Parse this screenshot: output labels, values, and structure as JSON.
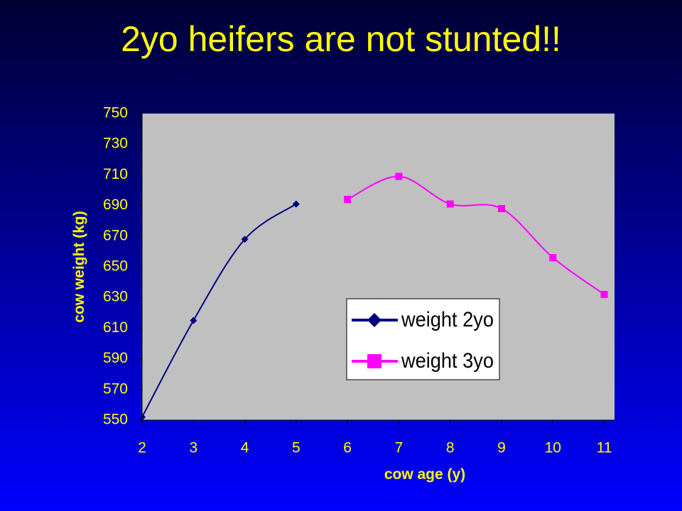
{
  "chart_data": {
    "type": "line",
    "title": "2yo heifers are not stunted!!",
    "xlabel": "cow age (y)",
    "ylabel": "cow weight (kg)",
    "xlim": [
      2,
      11.2
    ],
    "xticks": [
      2,
      3,
      4,
      5,
      6,
      7,
      8,
      9,
      10,
      11
    ],
    "ylim": [
      550,
      750
    ],
    "yticks": [
      550,
      570,
      590,
      610,
      630,
      650,
      670,
      690,
      710,
      730,
      750
    ],
    "smooth": true,
    "series": [
      {
        "name": "weight 2yo",
        "color": "#000080",
        "marker": "diamond",
        "x": [
          2,
          3,
          4,
          5
        ],
        "values": [
          552,
          615,
          668,
          691
        ]
      },
      {
        "name": "weight 3yo",
        "color": "#ff00ff",
        "marker": "square",
        "x": [
          6,
          7,
          8,
          9,
          10,
          11
        ],
        "values": [
          694,
          709,
          691,
          688,
          656,
          632
        ]
      }
    ]
  }
}
